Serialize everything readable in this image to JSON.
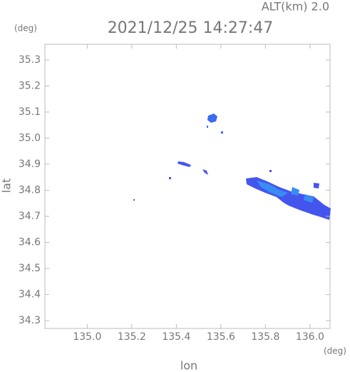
{
  "chart_data": {
    "type": "map",
    "title": "2021/12/25 14:27:47",
    "subtitle": "ALT(km) 2.0",
    "x_label": "lon",
    "x_unit": "(deg)",
    "y_label": "lat",
    "y_unit": "(deg)",
    "xlim": [
      134.81,
      136.09
    ],
    "xticks": [
      {
        "value": 135,
        "label": "135.0"
      },
      135.2,
      135.4,
      135.6,
      135.8,
      {
        "value": 136,
        "label": "136.0"
      }
    ],
    "ylim": [
      34.27,
      35.36
    ],
    "yticks": [
      34.3,
      34.4,
      34.5,
      34.6,
      34.7,
      34.8,
      34.9,
      {
        "value": 35,
        "label": "35.0"
      },
      35.1,
      35.2,
      35.3
    ]
  }
}
